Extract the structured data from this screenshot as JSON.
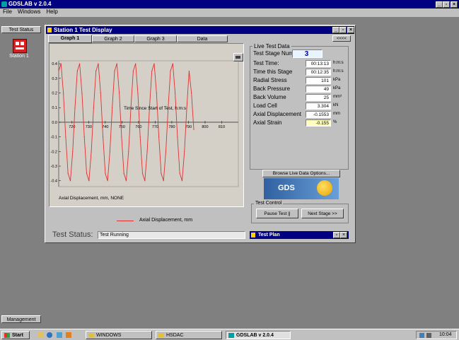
{
  "app": {
    "title": "GDSLAB v 2.0.4",
    "menu": [
      "File",
      "Windows",
      "Help"
    ],
    "window_controls": [
      "_",
      "▫",
      "×"
    ]
  },
  "left_panel": {
    "tab_label": "Test Status",
    "station_label": "Station 1",
    "bottom_tab_label": "Management"
  },
  "station_window": {
    "title": "Station 1 Test Display",
    "tabs": [
      "Graph 1",
      "Graph 2",
      "Graph 3",
      "Data"
    ],
    "collapse_label": "<<<<",
    "window_controls": [
      "_",
      "▫",
      "×"
    ]
  },
  "chart_data": {
    "type": "line",
    "title": "Time Since Start of Test, h:m:s",
    "xlabel": "",
    "ylabel": "Axial Displacement, mm, NONE",
    "x_tick_labels": [
      "720",
      "730",
      "740",
      "750",
      "760",
      "770",
      "780",
      "790",
      "800",
      "810"
    ],
    "y_tick_labels": [
      "0.4",
      "0.3",
      "0.2",
      "0.1",
      "0.0",
      "-0.1",
      "-0.2",
      "-0.3",
      "-0.4"
    ],
    "xlim": [
      712,
      820
    ],
    "ylim": [
      -0.44,
      0.42
    ],
    "series": [
      {
        "name": "Axial Displacement, mm",
        "color": "#e03030",
        "x": [
          712,
          713.4,
          714.8,
          716.2,
          717.6,
          719,
          720.4,
          721.8,
          723.2,
          724.6,
          726,
          727.4,
          728.8,
          730.2,
          731.6,
          733,
          734.4,
          735.8,
          737.2,
          738.6,
          740,
          741.4,
          742.8,
          744.2,
          745.6,
          747,
          748.4,
          749.8,
          751.2,
          752.6,
          754,
          755.4,
          756.8,
          758.2,
          759.6,
          761,
          762.4,
          763.8,
          765.2,
          766.6,
          768,
          769.4,
          770.8,
          772.2,
          773.6,
          775,
          776.4,
          777.8,
          779.2,
          780.6,
          782,
          783.4,
          784.8,
          786.2,
          787.6,
          789,
          790.4,
          791.8,
          793.2
        ],
        "y": [
          0.35,
          0.4,
          0.2,
          -0.1,
          -0.35,
          -0.4,
          -0.2,
          0.1,
          0.35,
          0.4,
          0.2,
          -0.1,
          -0.35,
          -0.4,
          -0.2,
          0.1,
          0.35,
          0.4,
          0.2,
          -0.1,
          -0.35,
          -0.4,
          -0.2,
          0.1,
          0.35,
          0.4,
          0.2,
          -0.1,
          -0.35,
          -0.4,
          -0.2,
          0.1,
          0.35,
          0.4,
          0.2,
          -0.1,
          -0.35,
          -0.4,
          -0.2,
          0.1,
          0.35,
          0.4,
          0.2,
          -0.1,
          -0.35,
          -0.4,
          -0.2,
          0.1,
          0.35,
          0.4,
          0.2,
          -0.1,
          -0.35,
          -0.4,
          -0.2,
          0.1,
          0.35,
          0.2,
          -0.05
        ]
      }
    ],
    "grid": false,
    "legend_position": "bottom-center"
  },
  "live": {
    "group_title": "Live Test Data",
    "rows": [
      {
        "label": "Test Stage Num:",
        "value": "3",
        "unit": ""
      },
      {
        "label": "Test Time:",
        "value": "00:13:13",
        "unit": "h:m:s"
      },
      {
        "label": "Time this Stage",
        "value": "00:12:35",
        "unit": "h:m:s"
      },
      {
        "label": "Radial Stress",
        "value": "101",
        "unit": "kPa"
      },
      {
        "label": "Back Pressure",
        "value": "49",
        "unit": "kPa"
      },
      {
        "label": "Back Volume",
        "value": "25",
        "unit": "mm³"
      },
      {
        "label": "Load Cell",
        "value": "3.304",
        "unit": "kN"
      },
      {
        "label": "Axial Displacement",
        "value": "-0.1553",
        "unit": "mm"
      },
      {
        "label": "Axial Strain",
        "value": "-0.155",
        "unit": "%"
      }
    ],
    "browse_button": "Browse Live Data Options...",
    "logo_text": "GDS"
  },
  "test_control": {
    "group_title": "Test Control",
    "pause_button": "Pause Test ||",
    "next_button": "Next Stage >>"
  },
  "test_plan": {
    "title": "Test Plan"
  },
  "status": {
    "label": "Test Status:",
    "value": "Test Running"
  },
  "taskbar": {
    "start_label": "Start",
    "tasks": [
      "WINDOWS",
      "HSDAC",
      "GDSLAB v 2.0.4"
    ],
    "clock": "10:04"
  },
  "colors": {
    "titlebar": "#000080",
    "desktop": "#808080",
    "face": "#c0c0c0",
    "series": "#e03030",
    "highlight_value": "#ffffc0"
  }
}
